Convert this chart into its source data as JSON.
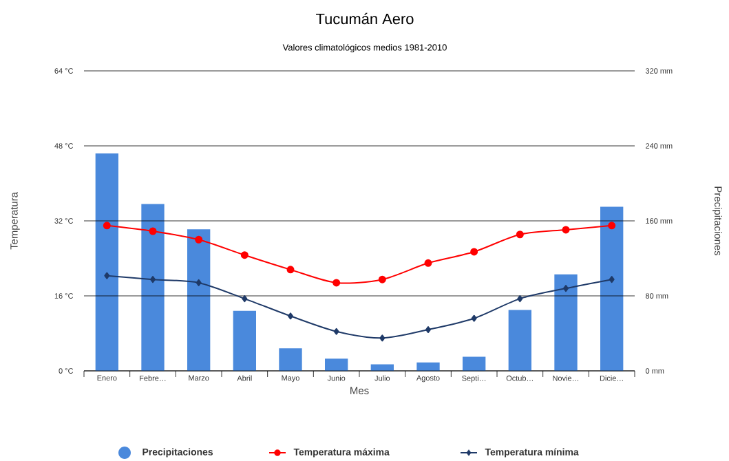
{
  "chart_data": {
    "type": "line",
    "title": "Tucumán Aero",
    "subtitle": "Valores climatológicos medios 1981-2010",
    "xlabel": "Mes",
    "ylabel": "Temperatura",
    "y2label": "Precipitaciones",
    "categories": [
      "Enero",
      "Febre…",
      "Marzo",
      "Abril",
      "Mayo",
      "Junio",
      "Julio",
      "Agosto",
      "Septi…",
      "Octub…",
      "Novie…",
      "Dicie…"
    ],
    "series": [
      {
        "name": "Precipitaciones",
        "type": "bar",
        "axis": "y2",
        "color": "#4a89dc",
        "values": [
          232,
          178,
          151,
          64,
          24,
          13,
          7,
          9,
          15,
          65,
          103,
          175
        ]
      },
      {
        "name": "Temperatura máxima",
        "marker": "circle",
        "color": "#ff0000",
        "values": [
          31.0,
          29.8,
          28.0,
          24.7,
          21.6,
          18.8,
          19.5,
          23.0,
          25.4,
          29.1,
          30.1,
          31.0
        ]
      },
      {
        "name": "Temperatura mínima",
        "marker": "diamond",
        "color": "#1f3a68",
        "values": [
          20.3,
          19.5,
          18.8,
          15.4,
          11.7,
          8.4,
          7.0,
          8.8,
          11.2,
          15.4,
          17.6,
          19.5
        ]
      }
    ],
    "ylim": [
      0,
      64
    ],
    "yticks": [
      {
        "value": 0,
        "label": "0 °C"
      },
      {
        "value": 16,
        "label": "16 °C"
      },
      {
        "value": 32,
        "label": "32 °C"
      },
      {
        "value": 48,
        "label": "48 °C"
      },
      {
        "value": 64,
        "label": "64 °C"
      }
    ],
    "y2lim": [
      0,
      320
    ],
    "y2ticks": [
      {
        "value": 0,
        "label": "0 mm"
      },
      {
        "value": 80,
        "label": "80 mm"
      },
      {
        "value": 160,
        "label": "160 mm"
      },
      {
        "value": 240,
        "label": "240 mm"
      },
      {
        "value": 320,
        "label": "320 mm"
      }
    ],
    "grid": "y",
    "legend": "bottom"
  }
}
